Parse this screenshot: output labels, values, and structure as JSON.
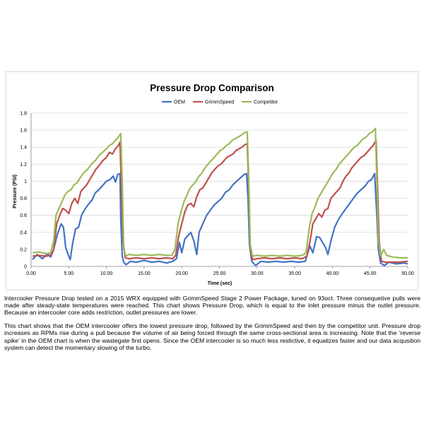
{
  "chart_data": {
    "type": "line",
    "title": "Pressure Drop Comparison",
    "xlabel": "Time (sec)",
    "ylabel": "Pressure (PSI)",
    "xlim": [
      0,
      50
    ],
    "ylim": [
      0,
      1.8
    ],
    "x_ticks": [
      "0.00",
      "5.00",
      "10.00",
      "15.00",
      "20.00",
      "25.00",
      "30.00",
      "35.00",
      "40.00",
      "45.00",
      "50.00"
    ],
    "y_ticks": [
      "0",
      "0.2",
      "0.4",
      "0.6",
      "0.8",
      "1",
      "1.2",
      "1.4",
      "1.6",
      "1.8"
    ],
    "grid": "horizontal",
    "legend_position": "top",
    "series": [
      {
        "name": "OEM",
        "color": "#4472C4",
        "points": [
          [
            0.2,
            0.08
          ],
          [
            0.8,
            0.14
          ],
          [
            1.5,
            0.09
          ],
          [
            2.2,
            0.15
          ],
          [
            2.6,
            0.11
          ],
          [
            3,
            0.2
          ],
          [
            3.5,
            0.38
          ],
          [
            4,
            0.5
          ],
          [
            4.3,
            0.46
          ],
          [
            4.6,
            0.22
          ],
          [
            5,
            0.12
          ],
          [
            5.2,
            0.08
          ],
          [
            5.5,
            0.26
          ],
          [
            5.9,
            0.44
          ],
          [
            6.3,
            0.46
          ],
          [
            6.7,
            0.6
          ],
          [
            7.2,
            0.68
          ],
          [
            7.7,
            0.74
          ],
          [
            8.1,
            0.78
          ],
          [
            8.5,
            0.86
          ],
          [
            9,
            0.9
          ],
          [
            9.5,
            0.95
          ],
          [
            10,
            1.0
          ],
          [
            10.5,
            1.02
          ],
          [
            10.9,
            1.06
          ],
          [
            11.2,
            0.99
          ],
          [
            11.5,
            1.08
          ],
          [
            11.8,
            1.09
          ],
          [
            11.9,
            0.55
          ],
          [
            12.1,
            0.12
          ],
          [
            12.3,
            0.05
          ],
          [
            12.6,
            0.02
          ],
          [
            13.2,
            0.06
          ],
          [
            14,
            0.05
          ],
          [
            15,
            0.07
          ],
          [
            16,
            0.05
          ],
          [
            17,
            0.06
          ],
          [
            18,
            0.04
          ],
          [
            18.8,
            0.06
          ],
          [
            19.3,
            0.09
          ],
          [
            19.7,
            0.28
          ],
          [
            20,
            0.16
          ],
          [
            20.4,
            0.32
          ],
          [
            20.8,
            0.36
          ],
          [
            21.2,
            0.4
          ],
          [
            21.6,
            0.3
          ],
          [
            22,
            0.14
          ],
          [
            22.3,
            0.4
          ],
          [
            22.8,
            0.5
          ],
          [
            23.3,
            0.6
          ],
          [
            23.8,
            0.66
          ],
          [
            24.3,
            0.72
          ],
          [
            24.8,
            0.76
          ],
          [
            25.3,
            0.8
          ],
          [
            25.8,
            0.87
          ],
          [
            26.3,
            0.9
          ],
          [
            26.8,
            0.96
          ],
          [
            27.3,
            1.0
          ],
          [
            27.8,
            1.04
          ],
          [
            28.3,
            1.08
          ],
          [
            28.6,
            1.09
          ],
          [
            28.8,
            0.8
          ],
          [
            29.0,
            0.25
          ],
          [
            29.3,
            0.06
          ],
          [
            29.8,
            0.01
          ],
          [
            30.5,
            0.06
          ],
          [
            31.5,
            0.05
          ],
          [
            32.5,
            0.06
          ],
          [
            33.5,
            0.05
          ],
          [
            34.5,
            0.06
          ],
          [
            35.5,
            0.05
          ],
          [
            36.4,
            0.06
          ],
          [
            37,
            0.24
          ],
          [
            37.4,
            0.16
          ],
          [
            37.9,
            0.35
          ],
          [
            38.3,
            0.34
          ],
          [
            38.7,
            0.28
          ],
          [
            39.1,
            0.22
          ],
          [
            39.4,
            0.14
          ],
          [
            39.8,
            0.3
          ],
          [
            40.3,
            0.46
          ],
          [
            40.8,
            0.55
          ],
          [
            41.3,
            0.62
          ],
          [
            41.8,
            0.68
          ],
          [
            42.3,
            0.74
          ],
          [
            42.8,
            0.8
          ],
          [
            43.3,
            0.86
          ],
          [
            43.8,
            0.9
          ],
          [
            44.3,
            0.94
          ],
          [
            44.8,
            1.0
          ],
          [
            45.2,
            1.02
          ],
          [
            45.6,
            1.09
          ],
          [
            45.9,
            0.6
          ],
          [
            46.1,
            0.2
          ],
          [
            46.4,
            0.04
          ],
          [
            46.9,
            0.01
          ],
          [
            47.5,
            0.05
          ],
          [
            48.5,
            0.03
          ],
          [
            49.5,
            0.04
          ],
          [
            50,
            0.03
          ]
        ]
      },
      {
        "name": "GrimmSpeed",
        "color": "#C0504D",
        "points": [
          [
            0.2,
            0.12
          ],
          [
            1,
            0.13
          ],
          [
            2,
            0.12
          ],
          [
            2.6,
            0.13
          ],
          [
            3,
            0.2
          ],
          [
            3.4,
            0.5
          ],
          [
            3.8,
            0.6
          ],
          [
            4.2,
            0.68
          ],
          [
            4.6,
            0.66
          ],
          [
            5,
            0.62
          ],
          [
            5.4,
            0.74
          ],
          [
            5.8,
            0.8
          ],
          [
            6.2,
            0.74
          ],
          [
            6.6,
            0.88
          ],
          [
            7,
            0.92
          ],
          [
            7.4,
            0.96
          ],
          [
            7.8,
            1.02
          ],
          [
            8.2,
            1.08
          ],
          [
            8.6,
            1.14
          ],
          [
            9,
            1.18
          ],
          [
            9.5,
            1.24
          ],
          [
            10,
            1.28
          ],
          [
            10.4,
            1.34
          ],
          [
            10.8,
            1.32
          ],
          [
            11.2,
            1.38
          ],
          [
            11.6,
            1.42
          ],
          [
            11.8,
            1.46
          ],
          [
            12,
            0.9
          ],
          [
            12.2,
            0.3
          ],
          [
            12.5,
            0.1
          ],
          [
            13,
            0.09
          ],
          [
            14,
            0.1
          ],
          [
            15,
            0.09
          ],
          [
            16,
            0.1
          ],
          [
            17,
            0.09
          ],
          [
            18,
            0.1
          ],
          [
            18.8,
            0.09
          ],
          [
            19.2,
            0.13
          ],
          [
            19.6,
            0.36
          ],
          [
            20,
            0.5
          ],
          [
            20.4,
            0.64
          ],
          [
            20.8,
            0.72
          ],
          [
            21.2,
            0.74
          ],
          [
            21.6,
            0.7
          ],
          [
            22,
            0.82
          ],
          [
            22.4,
            0.9
          ],
          [
            22.8,
            0.92
          ],
          [
            23.2,
            0.98
          ],
          [
            23.6,
            1.04
          ],
          [
            24,
            1.1
          ],
          [
            24.4,
            1.14
          ],
          [
            24.8,
            1.18
          ],
          [
            25.2,
            1.2
          ],
          [
            25.6,
            1.24
          ],
          [
            26,
            1.28
          ],
          [
            26.4,
            1.3
          ],
          [
            26.8,
            1.32
          ],
          [
            27.2,
            1.36
          ],
          [
            27.6,
            1.38
          ],
          [
            28,
            1.4
          ],
          [
            28.4,
            1.43
          ],
          [
            28.7,
            1.44
          ],
          [
            28.9,
            0.9
          ],
          [
            29.1,
            0.2
          ],
          [
            29.4,
            0.08
          ],
          [
            30,
            0.09
          ],
          [
            31,
            0.1
          ],
          [
            32,
            0.09
          ],
          [
            33,
            0.1
          ],
          [
            34,
            0.09
          ],
          [
            35,
            0.1
          ],
          [
            36,
            0.09
          ],
          [
            36.6,
            0.12
          ],
          [
            37,
            0.28
          ],
          [
            37.4,
            0.5
          ],
          [
            37.8,
            0.56
          ],
          [
            38.2,
            0.62
          ],
          [
            38.6,
            0.58
          ],
          [
            39,
            0.66
          ],
          [
            39.4,
            0.68
          ],
          [
            39.8,
            0.8
          ],
          [
            40.2,
            0.84
          ],
          [
            40.6,
            0.88
          ],
          [
            41,
            0.92
          ],
          [
            41.4,
            1.0
          ],
          [
            41.8,
            1.06
          ],
          [
            42.2,
            1.1
          ],
          [
            42.6,
            1.16
          ],
          [
            43,
            1.2
          ],
          [
            43.4,
            1.24
          ],
          [
            43.8,
            1.28
          ],
          [
            44.2,
            1.3
          ],
          [
            44.6,
            1.34
          ],
          [
            45,
            1.38
          ],
          [
            45.4,
            1.42
          ],
          [
            45.8,
            1.48
          ],
          [
            46.0,
            0.9
          ],
          [
            46.2,
            0.3
          ],
          [
            46.5,
            0.06
          ],
          [
            47,
            0.05
          ],
          [
            48,
            0.05
          ],
          [
            49,
            0.05
          ],
          [
            50,
            0.06
          ]
        ]
      },
      {
        "name": "Competitor",
        "color": "#9BBB59",
        "points": [
          [
            0.2,
            0.16
          ],
          [
            1,
            0.17
          ],
          [
            2,
            0.15
          ],
          [
            2.6,
            0.16
          ],
          [
            3,
            0.3
          ],
          [
            3.3,
            0.6
          ],
          [
            3.7,
            0.68
          ],
          [
            4.1,
            0.76
          ],
          [
            4.5,
            0.84
          ],
          [
            4.9,
            0.88
          ],
          [
            5.3,
            0.9
          ],
          [
            5.7,
            0.96
          ],
          [
            6.1,
            0.98
          ],
          [
            6.5,
            1.04
          ],
          [
            7,
            1.1
          ],
          [
            7.5,
            1.14
          ],
          [
            8,
            1.2
          ],
          [
            8.5,
            1.24
          ],
          [
            9,
            1.3
          ],
          [
            9.5,
            1.34
          ],
          [
            10,
            1.38
          ],
          [
            10.4,
            1.42
          ],
          [
            10.8,
            1.44
          ],
          [
            11.2,
            1.48
          ],
          [
            11.6,
            1.52
          ],
          [
            11.9,
            1.56
          ],
          [
            12.1,
            1.0
          ],
          [
            12.3,
            0.2
          ],
          [
            12.6,
            0.12
          ],
          [
            13,
            0.14
          ],
          [
            14,
            0.13
          ],
          [
            15,
            0.14
          ],
          [
            16,
            0.13
          ],
          [
            17,
            0.14
          ],
          [
            18,
            0.13
          ],
          [
            18.7,
            0.13
          ],
          [
            19.1,
            0.2
          ],
          [
            19.5,
            0.5
          ],
          [
            19.9,
            0.64
          ],
          [
            20.3,
            0.76
          ],
          [
            20.7,
            0.84
          ],
          [
            21.1,
            0.92
          ],
          [
            21.5,
            0.96
          ],
          [
            21.9,
            1.0
          ],
          [
            22.3,
            1.06
          ],
          [
            22.7,
            1.1
          ],
          [
            23.1,
            1.16
          ],
          [
            23.5,
            1.2
          ],
          [
            23.9,
            1.24
          ],
          [
            24.3,
            1.28
          ],
          [
            24.7,
            1.32
          ],
          [
            25.1,
            1.36
          ],
          [
            25.5,
            1.38
          ],
          [
            25.9,
            1.42
          ],
          [
            26.3,
            1.44
          ],
          [
            26.7,
            1.48
          ],
          [
            27.1,
            1.5
          ],
          [
            27.5,
            1.52
          ],
          [
            27.9,
            1.54
          ],
          [
            28.3,
            1.57
          ],
          [
            28.7,
            1.58
          ],
          [
            28.9,
            1.0
          ],
          [
            29.1,
            0.25
          ],
          [
            29.4,
            0.12
          ],
          [
            30,
            0.13
          ],
          [
            31,
            0.12
          ],
          [
            32,
            0.13
          ],
          [
            33,
            0.12
          ],
          [
            34,
            0.13
          ],
          [
            35,
            0.12
          ],
          [
            36,
            0.13
          ],
          [
            36.5,
            0.16
          ],
          [
            36.9,
            0.44
          ],
          [
            37.3,
            0.62
          ],
          [
            37.7,
            0.7
          ],
          [
            38.1,
            0.8
          ],
          [
            38.5,
            0.86
          ],
          [
            38.9,
            0.92
          ],
          [
            39.3,
            0.98
          ],
          [
            39.7,
            1.04
          ],
          [
            40.1,
            1.1
          ],
          [
            40.5,
            1.14
          ],
          [
            40.9,
            1.2
          ],
          [
            41.3,
            1.24
          ],
          [
            41.7,
            1.28
          ],
          [
            42.1,
            1.32
          ],
          [
            42.5,
            1.36
          ],
          [
            42.9,
            1.4
          ],
          [
            43.3,
            1.42
          ],
          [
            43.7,
            1.46
          ],
          [
            44.1,
            1.5
          ],
          [
            44.5,
            1.52
          ],
          [
            44.9,
            1.56
          ],
          [
            45.3,
            1.58
          ],
          [
            45.7,
            1.62
          ],
          [
            45.9,
            1.0
          ],
          [
            46.1,
            0.3
          ],
          [
            46.4,
            0.12
          ],
          [
            46.8,
            0.2
          ],
          [
            47.2,
            0.13
          ],
          [
            48,
            0.11
          ],
          [
            49,
            0.1
          ],
          [
            50,
            0.1
          ]
        ]
      }
    ]
  },
  "caption": {
    "paragraph1": "Intercooler Pressure Drop tested on a 2015 WRX equipped with GrimmSpeed Stage 2 Power Package, tuned on 93oct. Three consequetive pulls were made after steady-state temperatures were reached. This chart shows Pressure Drop, which is equal to the inlet pressure minus the outlet pressure. Because an intercooler core adds restriction, outlet pressures are lower.",
    "paragraph2": "This chart shows that the OEM intercooler offers the lowest pressure drop, followed by the GrimmSpeed and then by the competitor unit. Pressure drop increases as RPMs rise during a pull because the volume of air being forced through the same cross-sectional area is increasing. Note that the ‘reverse spike’ in the OEM chart is when the wastegate first opens. Since the OEM intercooler is so much less restictive, it equalizes faster and our data acqusition system can detect the momentary slowing of the turbo."
  }
}
